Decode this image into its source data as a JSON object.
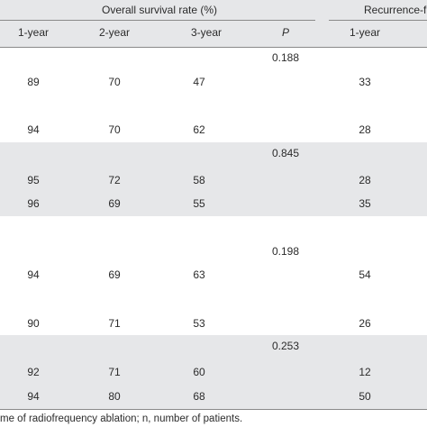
{
  "header": {
    "group_overall": "Overall survival rate (%)",
    "group_recurrence": "Recurrence-f",
    "col_1year": "1-year",
    "col_2year": "2-year",
    "col_3year": "3-year",
    "col_p": "P",
    "col_rec_1year": "1-year"
  },
  "rows": [
    {
      "p": "0.188",
      "a": {
        "y1": "89",
        "y2": "70",
        "y3": "47",
        "r1": "33"
      },
      "b": {
        "y1": "94",
        "y2": "70",
        "y3": "62",
        "r1": "28"
      }
    },
    {
      "p": "0.845",
      "a": {
        "y1": "95",
        "y2": "72",
        "y3": "58",
        "r1": "28"
      },
      "b": {
        "y1": "96",
        "y2": "69",
        "y3": "55",
        "r1": "35"
      }
    },
    {
      "p": "0.198",
      "a": {
        "y1": "94",
        "y2": "69",
        "y3": "63",
        "r1": "54"
      },
      "b": {
        "y1": "90",
        "y2": "71",
        "y3": "53",
        "r1": "26"
      }
    },
    {
      "p": "0.253",
      "a": {
        "y1": "92",
        "y2": "71",
        "y3": "60",
        "r1": "12"
      },
      "b": {
        "y1": "94",
        "y2": "80",
        "y3": "68",
        "r1": "50"
      }
    }
  ],
  "footnote": "me of radiofrequency ablation; n, number of patients."
}
